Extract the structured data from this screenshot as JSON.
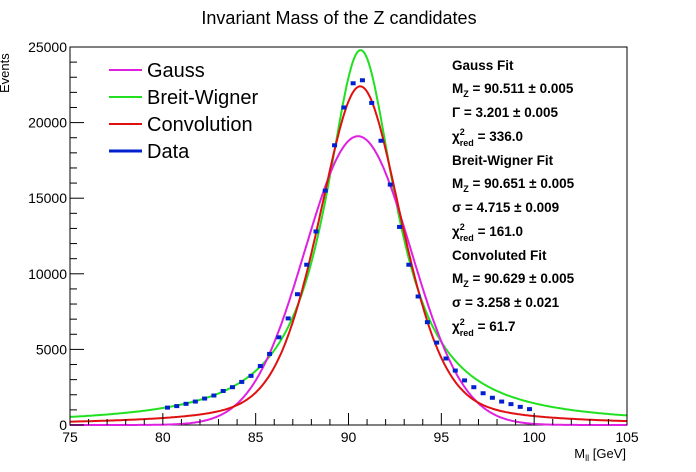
{
  "chart_data": {
    "type": "line",
    "title": "Invariant Mass of the Z candidates",
    "xlabel": "M",
    "xlabel_sub": "ll",
    "xlabel_unit": "[GeV]",
    "ylabel": "Events",
    "xlim": [
      75,
      105
    ],
    "ylim": [
      0,
      25000
    ],
    "x_ticks": [
      75,
      80,
      85,
      90,
      95,
      100,
      105
    ],
    "y_ticks": [
      0,
      5000,
      10000,
      15000,
      20000,
      25000
    ],
    "grid": false,
    "legend_position": "top-left",
    "legend": [
      {
        "name": "Gauss",
        "color": "#e020e0"
      },
      {
        "name": "Breit-Wigner",
        "color": "#20e020"
      },
      {
        "name": "Convolution",
        "color": "#e01010"
      },
      {
        "name": "Data",
        "color": "#0020d0"
      }
    ],
    "curves": [
      {
        "name": "Gauss",
        "color": "#e020e0",
        "kind": "gauss",
        "peak": 90.511,
        "width": 3.201,
        "amplitude": 19100
      },
      {
        "name": "Breit-Wigner",
        "color": "#20e020",
        "kind": "breit-wigner",
        "peak": 90.651,
        "width": 4.715,
        "amplitude": 24800
      },
      {
        "name": "Convolution",
        "color": "#e01010",
        "kind": "voigt",
        "peak": 90.629,
        "width": 3.258,
        "amplitude": 22400
      }
    ],
    "series": [
      {
        "name": "Data",
        "color": "#0020d0",
        "x": [
          80.25,
          80.75,
          81.25,
          81.75,
          82.25,
          82.75,
          83.25,
          83.75,
          84.25,
          84.75,
          85.25,
          85.75,
          86.25,
          86.75,
          87.25,
          87.75,
          88.25,
          88.75,
          89.25,
          89.75,
          90.25,
          90.75,
          91.25,
          91.75,
          92.25,
          92.75,
          93.25,
          93.75,
          94.25,
          94.75,
          95.25,
          95.75,
          96.25,
          96.75,
          97.25,
          97.75,
          98.25,
          98.75,
          99.25,
          99.75
        ],
        "y": [
          1150,
          1250,
          1400,
          1550,
          1750,
          1950,
          2250,
          2500,
          2850,
          3250,
          3900,
          4700,
          5800,
          7050,
          8650,
          10600,
          12800,
          15500,
          18500,
          21000,
          22600,
          22800,
          21300,
          18800,
          15900,
          13100,
          10600,
          8500,
          6800,
          5450,
          4400,
          3600,
          2950,
          2500,
          2100,
          1800,
          1550,
          1380,
          1200,
          1050
        ]
      }
    ],
    "fit_results": [
      {
        "title": "Gauss Fit",
        "lines": [
          {
            "sym": "M",
            "sub": "Z",
            "val": " = 90.511 ± 0.005"
          },
          {
            "sym": "Γ",
            "sub": "",
            "val": " = 3.201 ± 0.005"
          },
          {
            "sym": "χ",
            "sup": "2",
            "sub": "red",
            "val": " = 336.0"
          }
        ]
      },
      {
        "title": "Breit-Wigner Fit",
        "lines": [
          {
            "sym": "M",
            "sub": "Z",
            "val": " = 90.651 ± 0.005"
          },
          {
            "sym": "σ",
            "sub": "",
            "val": " = 4.715 ± 0.009"
          },
          {
            "sym": "χ",
            "sup": "2",
            "sub": "red",
            "val": " = 161.0"
          }
        ]
      },
      {
        "title": "Convoluted Fit",
        "lines": [
          {
            "sym": "M",
            "sub": "Z",
            "val": " = 90.629 ± 0.005"
          },
          {
            "sym": "σ",
            "sub": "",
            "val": " = 3.258 ± 0.021"
          },
          {
            "sym": "χ",
            "sup": "2",
            "sub": "red",
            "val": " = 61.7"
          }
        ]
      }
    ]
  }
}
